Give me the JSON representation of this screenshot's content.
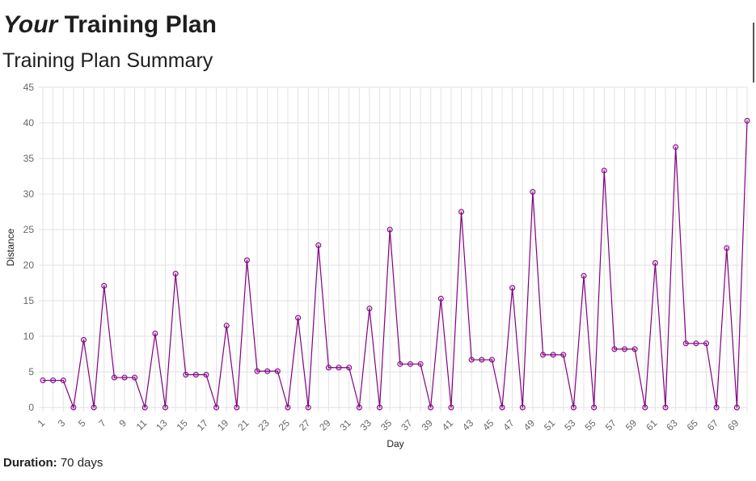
{
  "page": {
    "heading_em": "Your",
    "heading_rest": "Training Plan",
    "subheading": "Training Plan Summary",
    "duration_label": "Duration:",
    "duration_value": "70 days"
  },
  "chart_data": {
    "type": "line",
    "xlabel": "Day",
    "ylabel": "Distance",
    "ylim": [
      0,
      45
    ],
    "yticks": [
      0,
      5,
      10,
      15,
      20,
      25,
      30,
      35,
      40,
      45
    ],
    "x": [
      1,
      2,
      3,
      4,
      5,
      6,
      7,
      8,
      9,
      10,
      11,
      12,
      13,
      14,
      15,
      16,
      17,
      18,
      19,
      20,
      21,
      22,
      23,
      24,
      25,
      26,
      27,
      28,
      29,
      30,
      31,
      32,
      33,
      34,
      35,
      36,
      37,
      38,
      39,
      40,
      41,
      42,
      43,
      44,
      45,
      46,
      47,
      48,
      49,
      50,
      51,
      52,
      53,
      54,
      55,
      56,
      57,
      58,
      59,
      60,
      61,
      62,
      63,
      64,
      65,
      66,
      67,
      68,
      69,
      70
    ],
    "xtick_labels": [
      1,
      3,
      5,
      7,
      9,
      11,
      13,
      15,
      17,
      19,
      21,
      23,
      25,
      27,
      29,
      31,
      33,
      35,
      37,
      39,
      41,
      43,
      45,
      47,
      49,
      51,
      53,
      55,
      57,
      59,
      61,
      63,
      65,
      67,
      69
    ],
    "series": [
      {
        "values": [
          3.8,
          3.8,
          3.8,
          0,
          9.5,
          0,
          17.1,
          4.2,
          4.2,
          4.2,
          0,
          10.4,
          0,
          18.8,
          4.6,
          4.6,
          4.6,
          0,
          11.5,
          0,
          20.7,
          5.1,
          5.1,
          5.1,
          0,
          12.6,
          0,
          22.8,
          5.6,
          5.6,
          5.6,
          0,
          13.9,
          0,
          25,
          6.1,
          6.1,
          6.1,
          0,
          15.3,
          0,
          27.5,
          6.7,
          6.7,
          6.7,
          0,
          16.8,
          0,
          30.3,
          7.4,
          7.4,
          7.4,
          0,
          18.5,
          0,
          33.3,
          8.2,
          8.2,
          8.2,
          0,
          20.3,
          0,
          36.6,
          9,
          9,
          9,
          0,
          22.4,
          0,
          40.3
        ],
        "color": "#800080"
      }
    ],
    "grid": true,
    "legend": "none"
  }
}
